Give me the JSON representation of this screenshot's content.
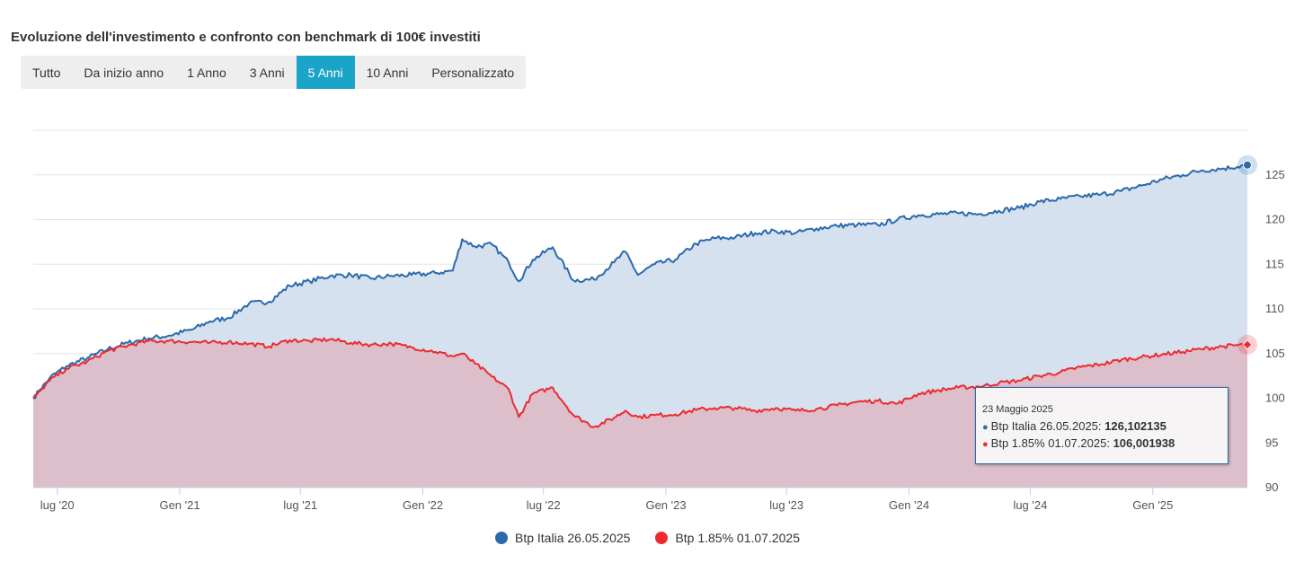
{
  "title": "Evoluzione dell'investimento e confronto con benchmark di 100€ investiti",
  "range_selector": {
    "buttons": [
      "Tutto",
      "Da inizio anno",
      "1 Anno",
      "3 Anni",
      "5 Anni",
      "10 Anni",
      "Personalizzato"
    ],
    "active": "5 Anni"
  },
  "colors": {
    "series1": "#2a6aad",
    "series1_fill": "#d5e1ee",
    "series2": "#ee2a2f",
    "series2_fill": "#dcbdc7",
    "grid": "#e6e6e6",
    "active_button": "#1aa4c7"
  },
  "tooltip": {
    "date": "23 Maggio 2025",
    "rows": [
      {
        "name": "Btp Italia 26.05.2025",
        "value": "126,102135"
      },
      {
        "name": "Btp 1.85% 01.07.2025",
        "value": "106,001938"
      }
    ]
  },
  "chart_data": {
    "type": "area",
    "title": "Evoluzione dell'investimento e confronto con benchmark di 100€ investiti",
    "xlabel": "",
    "ylabel": "",
    "x_ticks": [
      "lug '20",
      "Gen '21",
      "lug '21",
      "Gen '22",
      "lug '22",
      "Gen '23",
      "lug '23",
      "Gen '24",
      "lug '24",
      "Gen '25"
    ],
    "y_ticks": [
      90,
      95,
      100,
      105,
      110,
      115,
      120,
      125
    ],
    "ylim": [
      90,
      130
    ],
    "grid": true,
    "legend_position": "bottom-center",
    "series": [
      {
        "name": "Btp Italia 26.05.2025",
        "x": [
          "2020-05-26",
          "2020-06-20",
          "2020-07-15",
          "2020-08-15",
          "2020-09-15",
          "2020-10-15",
          "2020-11-15",
          "2020-12-15",
          "2021-01-20",
          "2021-02-15",
          "2021-03-15",
          "2021-04-15",
          "2021-05-15",
          "2021-06-15",
          "2021-07-15",
          "2021-08-15",
          "2021-09-15",
          "2021-10-15",
          "2021-11-15",
          "2021-12-15",
          "2022-01-20",
          "2022-02-15",
          "2022-03-01",
          "2022-03-20",
          "2022-04-15",
          "2022-05-10",
          "2022-05-25",
          "2022-06-15",
          "2022-07-15",
          "2022-08-15",
          "2022-09-15",
          "2022-10-15",
          "2022-11-01",
          "2022-11-20",
          "2022-12-15",
          "2023-01-15",
          "2023-02-15",
          "2023-03-15",
          "2023-04-15",
          "2023-05-15",
          "2023-06-15",
          "2023-07-15",
          "2023-08-15",
          "2023-09-15",
          "2023-10-15",
          "2023-11-15",
          "2023-12-15",
          "2024-01-15",
          "2024-02-15",
          "2024-03-15",
          "2024-04-15",
          "2024-05-15",
          "2024-06-15",
          "2024-07-15",
          "2024-08-15",
          "2024-09-15",
          "2024-10-15",
          "2024-11-15",
          "2024-12-15",
          "2025-01-15",
          "2025-02-15",
          "2025-03-15",
          "2025-04-15",
          "2025-05-23"
        ],
        "values": [
          100,
          102.3,
          103.6,
          104.5,
          105.5,
          106.2,
          106.7,
          107,
          107.7,
          108.6,
          109,
          110.6,
          110.8,
          112.6,
          113.1,
          113.7,
          113.8,
          113.4,
          113.7,
          113.8,
          114,
          114.3,
          117.8,
          117,
          117.2,
          115.2,
          113.1,
          115.5,
          116.9,
          113.2,
          113.3,
          115.2,
          116.4,
          113.8,
          115,
          115.5,
          117.3,
          117.9,
          118,
          118.5,
          118.7,
          118.5,
          119,
          119.3,
          119.4,
          119.4,
          120,
          120.5,
          120.6,
          120.7,
          120.6,
          121,
          121.3,
          122,
          122.3,
          122.6,
          122.8,
          123.2,
          123.8,
          124.5,
          125,
          125.5,
          125.7,
          126.1
        ]
      },
      {
        "name": "Btp 1.85% 01.07.2025",
        "x": [
          "2020-05-26",
          "2020-06-20",
          "2020-07-15",
          "2020-08-15",
          "2020-09-15",
          "2020-10-15",
          "2020-11-15",
          "2020-12-15",
          "2021-01-20",
          "2021-02-15",
          "2021-03-15",
          "2021-04-15",
          "2021-05-15",
          "2021-06-15",
          "2021-07-15",
          "2021-08-15",
          "2021-09-15",
          "2021-10-15",
          "2021-11-15",
          "2021-12-15",
          "2022-01-20",
          "2022-02-15",
          "2022-03-01",
          "2022-03-20",
          "2022-04-15",
          "2022-05-10",
          "2022-05-25",
          "2022-06-15",
          "2022-07-15",
          "2022-08-15",
          "2022-09-15",
          "2022-10-15",
          "2022-11-01",
          "2022-11-20",
          "2022-12-15",
          "2023-01-15",
          "2023-02-15",
          "2023-03-15",
          "2023-04-15",
          "2023-05-15",
          "2023-06-15",
          "2023-07-15",
          "2023-08-15",
          "2023-09-15",
          "2023-10-15",
          "2023-11-15",
          "2023-12-15",
          "2024-01-15",
          "2024-02-15",
          "2024-03-15",
          "2024-04-15",
          "2024-05-15",
          "2024-06-15",
          "2024-07-15",
          "2024-08-15",
          "2024-09-15",
          "2024-10-15",
          "2024-11-15",
          "2024-12-15",
          "2025-01-15",
          "2025-02-15",
          "2025-03-15",
          "2025-04-15",
          "2025-05-23"
        ],
        "values": [
          100,
          102,
          103.3,
          104.1,
          105.3,
          105.9,
          106.4,
          106.4,
          106.3,
          106.2,
          106.3,
          106.1,
          105.8,
          106.5,
          106.4,
          106.6,
          106.2,
          106,
          106.1,
          105.7,
          105.2,
          104.7,
          105,
          103.9,
          102.4,
          101,
          97.9,
          100.5,
          101.2,
          98.1,
          96.8,
          97.8,
          98.6,
          97.9,
          98.1,
          98.2,
          98.7,
          98.9,
          98.9,
          98.6,
          98.9,
          98.6,
          98.8,
          99.2,
          99.6,
          99.7,
          99.4,
          100.5,
          100.9,
          101.2,
          101.3,
          101.7,
          102,
          102.5,
          102.9,
          103.5,
          103.8,
          104.3,
          104.6,
          104.9,
          105.2,
          105.5,
          105.8,
          106
        ]
      }
    ]
  }
}
